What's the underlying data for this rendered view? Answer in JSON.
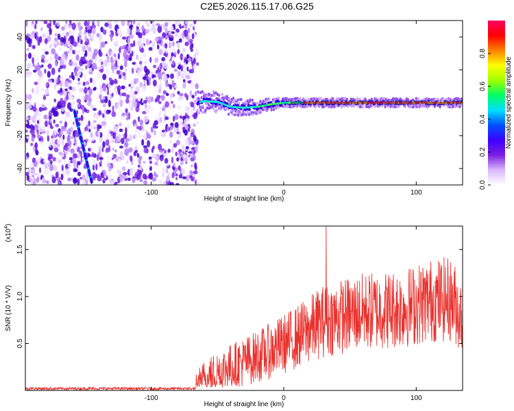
{
  "title": "C2E5.2026.115.17.06.G25",
  "chart_data": [
    {
      "type": "heatmap",
      "name": "spectrogram",
      "xlabel": "Height of straight line (km)",
      "ylabel": "Frequency (Hz)",
      "xlim": [
        -195,
        135
      ],
      "ylim": [
        -50,
        50
      ],
      "xticks": [
        -100,
        0,
        100
      ],
      "yticks": [
        -40,
        -20,
        0,
        20,
        40
      ],
      "colorbar": {
        "label": "Normalized spectral amplitude",
        "range": [
          0,
          1
        ],
        "ticks": [
          0.0,
          0.2,
          0.4,
          0.6,
          0.8
        ],
        "tick_labels": [
          "0.0",
          "0.2",
          "0.4",
          "0.6",
          "0.8"
        ],
        "colors": [
          "#ffffff",
          "#d9b8ff",
          "#7a1fe0",
          "#3b00ff",
          "#0050ff",
          "#00e0ff",
          "#00ff60",
          "#a0ff00",
          "#ffff00",
          "#ff8000",
          "#ff0000",
          "#ff0060"
        ]
      },
      "noise_region_x": [
        -195,
        -65
      ],
      "signal_line": [
        {
          "x": -65,
          "y": 0.0
        },
        {
          "x": -60,
          "y": 1.0
        },
        {
          "x": -50,
          "y": 0.5
        },
        {
          "x": -40,
          "y": -2.5
        },
        {
          "x": -30,
          "y": -3.0
        },
        {
          "x": -20,
          "y": -2.5
        },
        {
          "x": -10,
          "y": -1.0
        },
        {
          "x": 0,
          "y": 0.0
        },
        {
          "x": 20,
          "y": 0.0
        },
        {
          "x": 60,
          "y": 0.0
        },
        {
          "x": 100,
          "y": 0.0
        },
        {
          "x": 135,
          "y": 0.0
        }
      ],
      "diagonal_track": [
        {
          "x": -158,
          "y": -5
        },
        {
          "x": -152,
          "y": -25
        },
        {
          "x": -145,
          "y": -48
        }
      ]
    },
    {
      "type": "line",
      "name": "snr",
      "xlabel": "Height of straight line (km)",
      "ylabel": "SNR (10 * V/V)",
      "y_scale_label": "(x10",
      "y_scale_exponent": "4",
      "xlim": [
        -195,
        135
      ],
      "ylim": [
        0,
        1.75
      ],
      "xticks": [
        -100,
        0,
        100
      ],
      "yticks": [
        0.5,
        1.0,
        1.5
      ],
      "ytick_labels": [
        "0.5",
        "1.0",
        "1.5"
      ],
      "color": "#e8322e",
      "trend": [
        {
          "x": -195,
          "y": 0.02
        },
        {
          "x": -66,
          "y": 0.02
        },
        {
          "x": -62,
          "y": 0.12
        },
        {
          "x": -50,
          "y": 0.22
        },
        {
          "x": -30,
          "y": 0.33
        },
        {
          "x": -10,
          "y": 0.45
        },
        {
          "x": 10,
          "y": 0.6
        },
        {
          "x": 30,
          "y": 0.78
        },
        {
          "x": 60,
          "y": 0.88
        },
        {
          "x": 90,
          "y": 0.92
        },
        {
          "x": 110,
          "y": 1.0
        },
        {
          "x": 125,
          "y": 1.02
        },
        {
          "x": 130,
          "y": 0.95
        },
        {
          "x": 135,
          "y": 0.8
        }
      ],
      "peak": {
        "x": 32,
        "y": 1.75
      }
    }
  ]
}
